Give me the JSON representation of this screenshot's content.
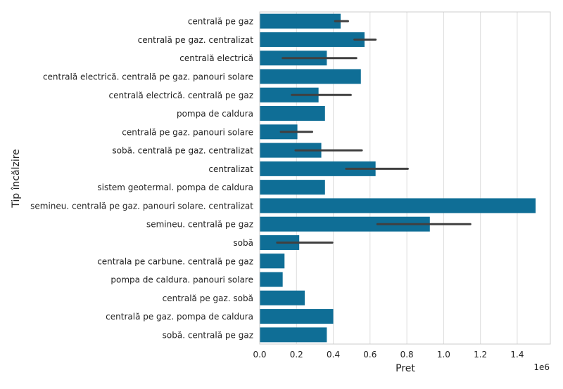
{
  "chart_data": {
    "type": "bar",
    "orientation": "horizontal",
    "categories": [
      "centrală pe gaz",
      "centrală pe gaz. centralizat",
      "centrală electrică",
      "centrală electrică. centrală pe gaz. panouri solare",
      "centrală electrică. centrală pe gaz",
      "pompa de caldura",
      "centrală pe gaz. panouri solare",
      "sobă. centrală pe gaz. centralizat",
      "centralizat",
      "sistem geotermal. pompa de caldura",
      "semineu. centrală pe gaz. panouri solare. centralizat",
      "semineu. centrală pe gaz",
      "sobă",
      "centrala pe carbune. centrală pe gaz",
      "pompa de caldura. panouri solare",
      "centrală pe gaz. sobă",
      "centrală pe gaz. pompa de caldura",
      "sobă. centrală pe gaz"
    ],
    "values": [
      440000,
      570000,
      365000,
      550000,
      320000,
      355000,
      205000,
      335000,
      630000,
      355000,
      1500000,
      925000,
      215000,
      135000,
      125000,
      245000,
      400000,
      365000
    ],
    "error_low": [
      410000,
      515000,
      125000,
      null,
      175000,
      null,
      115000,
      195000,
      470000,
      null,
      null,
      640000,
      95000,
      null,
      null,
      null,
      null,
      null
    ],
    "error_high": [
      480000,
      630000,
      525000,
      null,
      495000,
      null,
      285000,
      555000,
      805000,
      null,
      null,
      1145000,
      395000,
      null,
      null,
      null,
      null,
      null
    ],
    "xlabel": "Pret",
    "ylabel": "Tip încălzire",
    "xlim": [
      0,
      1580000
    ],
    "xticks": [
      0,
      200000,
      400000,
      600000,
      800000,
      1000000,
      1200000,
      1400000
    ],
    "xtick_labels": [
      "0.0",
      "0.2",
      "0.4",
      "0.6",
      "0.8",
      "1.0",
      "1.2",
      "1.4"
    ],
    "offset_label": "1e6",
    "grid": "vertical",
    "colors": {
      "bar": "#0f6e96",
      "errorbar": "#404040",
      "grid": "#dddddd",
      "axis": "#cccccc"
    }
  }
}
